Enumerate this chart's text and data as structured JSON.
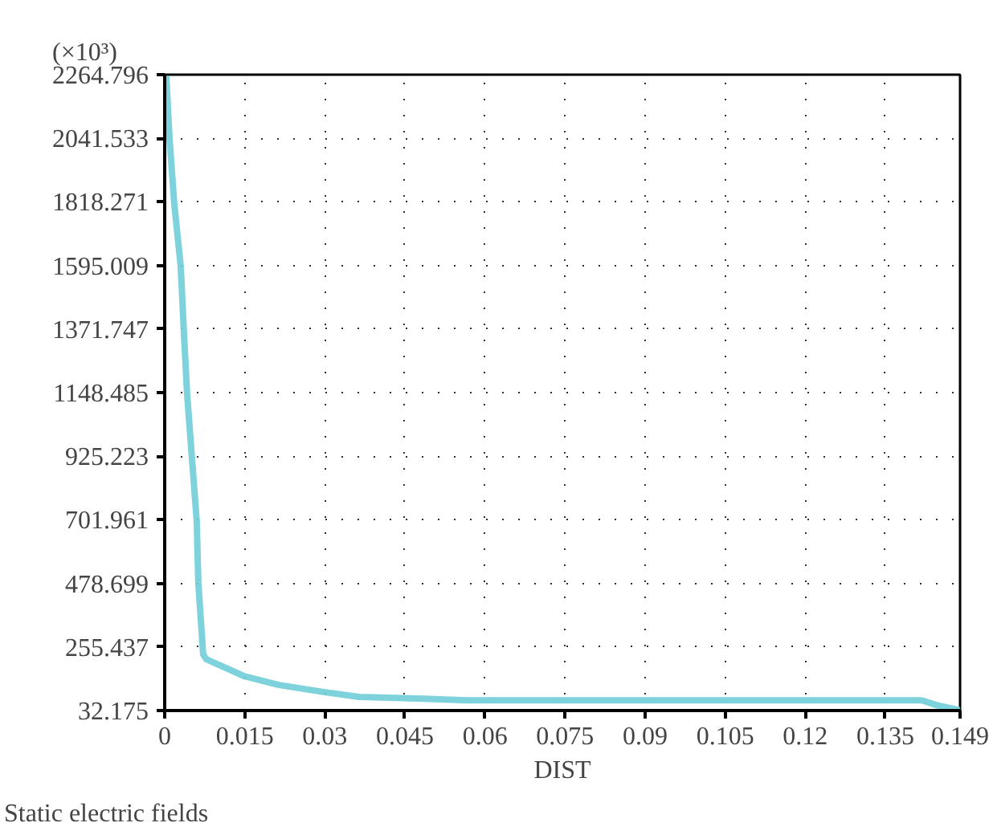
{
  "chart_data": {
    "type": "line",
    "xlabel": "DIST",
    "ylabel": "(×10³)",
    "annotations": [
      "Static electric fields"
    ],
    "series": [
      {
        "color": "#6fcdd8",
        "x": [
          0.0003,
          0.0009,
          0.0018,
          0.003,
          0.0036,
          0.0042,
          0.0051,
          0.006,
          0.0063,
          0.0072,
          0.0078,
          0.015,
          0.0214,
          0.0295,
          0.0364,
          0.0485,
          0.0566,
          0.1418,
          0.1448,
          0.149
        ],
        "values": [
          2259,
          2043,
          1809,
          1593,
          1359,
          1143,
          920,
          698,
          482,
          230,
          212,
          152,
          122,
          98,
          80,
          74,
          68,
          68,
          50,
          33
        ]
      }
    ],
    "xlim": [
      0,
      0.149
    ],
    "xticks": [
      0,
      0.015,
      0.03,
      0.045,
      0.06,
      0.075,
      0.09,
      0.105,
      0.12,
      0.135,
      0.149
    ],
    "ylim": [
      32.175,
      2264.796
    ],
    "yticks": [
      {
        "value": 32.175,
        "label": "32.175"
      },
      {
        "value": 255.437,
        "label": "255.437"
      },
      {
        "value": 478.699,
        "label": "478.699"
      },
      {
        "value": 701.961,
        "label": "701.961"
      },
      {
        "value": 925.223,
        "label": "925.223"
      },
      {
        "value": 1148.485,
        "label": "1148.485"
      },
      {
        "value": 1371.747,
        "label": "1371.747"
      },
      {
        "value": 1595.009,
        "label": "1595.009"
      },
      {
        "value": 1818.271,
        "label": "1818.271"
      },
      {
        "value": 2041.533,
        "label": "2041.533"
      },
      {
        "value": 2264.796,
        "label": "2264.796"
      }
    ],
    "grid": true,
    "line_style": "solid"
  }
}
